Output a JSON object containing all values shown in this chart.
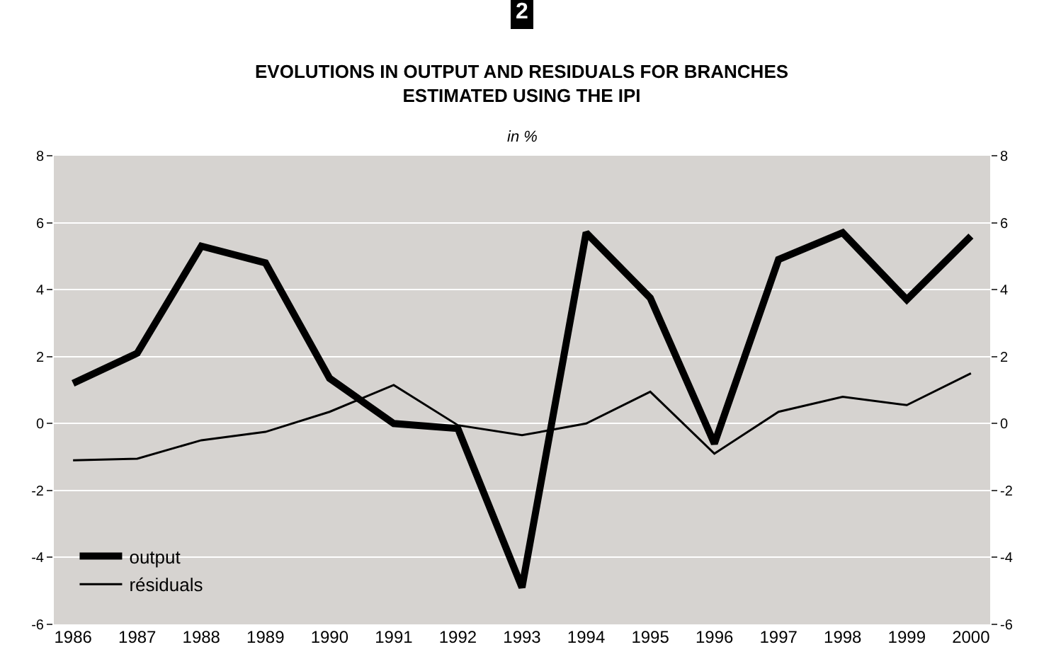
{
  "chart_data": {
    "type": "line",
    "title": "EVOLUTIONS IN OUTPUT AND RESIDUALS FOR BRANCHES\nESTIMATED USING THE IPI",
    "subtitle": "in %",
    "annotations": [
      "2"
    ],
    "categories": [
      "1986",
      "1987",
      "1988",
      "1989",
      "1990",
      "1991",
      "1992",
      "1993",
      "1994",
      "1995",
      "1996",
      "1997",
      "1998",
      "1999",
      "2000"
    ],
    "series": [
      {
        "name": "output",
        "color": "#000000",
        "values": [
          1.2,
          2.1,
          5.3,
          4.8,
          1.35,
          0.0,
          -0.15,
          -4.9,
          5.7,
          3.75,
          -0.6,
          4.9,
          5.7,
          3.7,
          5.6
        ]
      },
      {
        "name": "résiduals",
        "color": "#000000",
        "values": [
          -1.1,
          -1.05,
          -0.5,
          -0.25,
          0.35,
          1.15,
          -0.05,
          -0.35,
          0.0,
          0.95,
          -0.9,
          0.35,
          0.8,
          0.55,
          1.5
        ]
      }
    ],
    "ylim": [
      -6,
      8
    ],
    "yticks": [
      -6,
      -4,
      -2,
      0,
      2,
      4,
      6,
      8
    ],
    "y2lim": [
      -6,
      8
    ],
    "y2ticks": [
      -6,
      -4,
      -2,
      0,
      2,
      4,
      6,
      8
    ],
    "grid": "y",
    "legend": "bottom left",
    "marker": "none",
    "line_style": "solid"
  }
}
